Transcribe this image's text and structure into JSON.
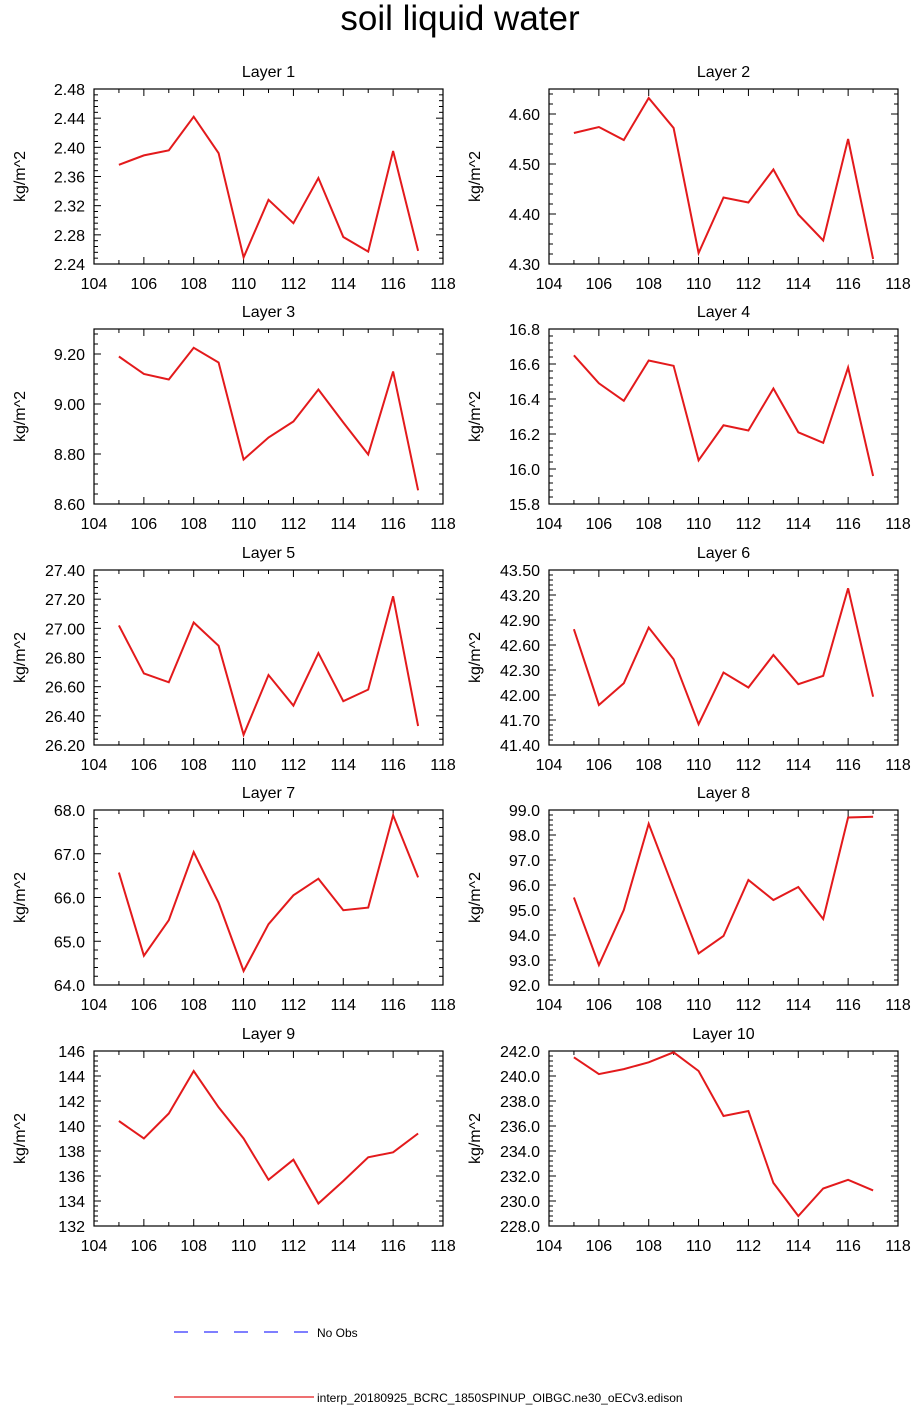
{
  "title": "soil liquid water",
  "colors": {
    "model_line": "#e31a1c",
    "obs_line": "#3333ff",
    "frame": "#000000"
  },
  "legend": {
    "obs_label": "No Obs",
    "model_label": "interp_20180925_BCRC_1850SPINUP_OIBGC.ne30_oECv3.edison"
  },
  "chart_data": [
    {
      "type": "line",
      "title": "Layer 1",
      "ylabel": "kg/m^2",
      "xlim": [
        104,
        118
      ],
      "ylim": [
        2.24,
        2.48
      ],
      "xticks": [
        "104",
        "106",
        "108",
        "110",
        "112",
        "114",
        "116",
        "118"
      ],
      "yticks": [
        "2.24",
        "2.28",
        "2.32",
        "2.36",
        "2.40",
        "2.44",
        "2.48"
      ],
      "x": [
        105,
        106,
        107,
        108,
        109,
        110,
        111,
        112,
        113,
        114,
        115,
        116,
        117
      ],
      "series": [
        {
          "values": [
            2.376,
            2.389,
            2.396,
            2.442,
            2.392,
            2.249,
            2.328,
            2.296,
            2.358,
            2.277,
            2.257,
            2.395,
            2.258
          ]
        }
      ]
    },
    {
      "type": "line",
      "title": "Layer 2",
      "ylabel": "kg/m^2",
      "xlim": [
        104,
        118
      ],
      "ylim": [
        4.3,
        4.65
      ],
      "xticks": [
        "104",
        "106",
        "108",
        "110",
        "112",
        "114",
        "116",
        "118"
      ],
      "yticks": [
        "4.30",
        "4.40",
        "4.50",
        "4.60"
      ],
      "x": [
        105,
        106,
        107,
        108,
        109,
        110,
        111,
        112,
        113,
        114,
        115,
        116,
        117
      ],
      "series": [
        {
          "values": [
            4.562,
            4.574,
            4.548,
            4.632,
            4.572,
            4.322,
            4.433,
            4.423,
            4.489,
            4.399,
            4.347,
            4.55,
            4.31
          ]
        }
      ]
    },
    {
      "type": "line",
      "title": "Layer 3",
      "ylabel": "kg/m^2",
      "xlim": [
        104,
        118
      ],
      "ylim": [
        8.6,
        9.3
      ],
      "xticks": [
        "104",
        "106",
        "108",
        "110",
        "112",
        "114",
        "116",
        "118"
      ],
      "yticks": [
        "8.60",
        "8.80",
        "9.00",
        "9.20"
      ],
      "x": [
        105,
        106,
        107,
        108,
        109,
        110,
        111,
        112,
        113,
        114,
        115,
        116,
        117
      ],
      "series": [
        {
          "values": [
            9.19,
            9.12,
            9.098,
            9.225,
            9.166,
            8.778,
            8.866,
            8.93,
            9.058,
            8.926,
            8.798,
            9.13,
            8.655
          ]
        }
      ]
    },
    {
      "type": "line",
      "title": "Layer 4",
      "ylabel": "kg/m^2",
      "xlim": [
        104,
        118
      ],
      "ylim": [
        15.8,
        16.8
      ],
      "xticks": [
        "104",
        "106",
        "108",
        "110",
        "112",
        "114",
        "116",
        "118"
      ],
      "yticks": [
        "15.8",
        "16.0",
        "16.2",
        "16.4",
        "16.6",
        "16.8"
      ],
      "x": [
        105,
        106,
        107,
        108,
        109,
        110,
        111,
        112,
        113,
        114,
        115,
        116,
        117
      ],
      "series": [
        {
          "values": [
            16.65,
            16.49,
            16.39,
            16.62,
            16.59,
            16.05,
            16.25,
            16.22,
            16.46,
            16.21,
            16.15,
            16.58,
            15.96
          ]
        }
      ]
    },
    {
      "type": "line",
      "title": "Layer 5",
      "ylabel": "kg/m^2",
      "xlim": [
        104,
        118
      ],
      "ylim": [
        26.2,
        27.4
      ],
      "xticks": [
        "104",
        "106",
        "108",
        "110",
        "112",
        "114",
        "116",
        "118"
      ],
      "yticks": [
        "26.20",
        "26.40",
        "26.60",
        "26.80",
        "27.00",
        "27.20",
        "27.40"
      ],
      "x": [
        105,
        106,
        107,
        108,
        109,
        110,
        111,
        112,
        113,
        114,
        115,
        116,
        117
      ],
      "series": [
        {
          "values": [
            27.02,
            26.69,
            26.63,
            27.04,
            26.88,
            26.27,
            26.68,
            26.47,
            26.83,
            26.5,
            26.58,
            27.22,
            26.33
          ]
        }
      ]
    },
    {
      "type": "line",
      "title": "Layer 6",
      "ylabel": "kg/m^2",
      "xlim": [
        104,
        118
      ],
      "ylim": [
        41.4,
        43.5
      ],
      "xticks": [
        "104",
        "106",
        "108",
        "110",
        "112",
        "114",
        "116",
        "118"
      ],
      "yticks": [
        "41.40",
        "41.70",
        "42.00",
        "42.30",
        "42.60",
        "42.90",
        "43.20",
        "43.50"
      ],
      "x": [
        105,
        106,
        107,
        108,
        109,
        110,
        111,
        112,
        113,
        114,
        115,
        116,
        117
      ],
      "series": [
        {
          "values": [
            42.79,
            41.88,
            42.14,
            42.81,
            42.43,
            41.65,
            42.27,
            42.09,
            42.48,
            42.13,
            42.23,
            43.28,
            41.98
          ]
        }
      ]
    },
    {
      "type": "line",
      "title": "Layer 7",
      "ylabel": "kg/m^2",
      "xlim": [
        104,
        118
      ],
      "ylim": [
        64.0,
        68.0
      ],
      "xticks": [
        "104",
        "106",
        "108",
        "110",
        "112",
        "114",
        "116",
        "118"
      ],
      "yticks": [
        "64.0",
        "65.0",
        "66.0",
        "67.0",
        "68.0"
      ],
      "x": [
        105,
        106,
        107,
        108,
        109,
        110,
        111,
        112,
        113,
        114,
        115,
        116,
        117
      ],
      "series": [
        {
          "values": [
            66.57,
            64.67,
            65.48,
            67.04,
            65.88,
            64.32,
            65.39,
            66.05,
            66.43,
            65.71,
            65.77,
            67.88,
            66.46
          ]
        }
      ]
    },
    {
      "type": "line",
      "title": "Layer 8",
      "ylabel": "kg/m^2",
      "xlim": [
        104,
        118
      ],
      "ylim": [
        92.0,
        99.0
      ],
      "xticks": [
        "104",
        "106",
        "108",
        "110",
        "112",
        "114",
        "116",
        "118"
      ],
      "yticks": [
        "92.0",
        "93.0",
        "94.0",
        "95.0",
        "96.0",
        "97.0",
        "98.0",
        "99.0"
      ],
      "x": [
        105,
        106,
        107,
        108,
        109,
        110,
        111,
        112,
        113,
        114,
        115,
        116,
        117
      ],
      "series": [
        {
          "values": [
            95.5,
            92.8,
            95.0,
            98.45,
            95.85,
            93.26,
            93.96,
            96.2,
            95.4,
            95.92,
            94.64,
            98.7,
            98.73
          ]
        }
      ]
    },
    {
      "type": "line",
      "title": "Layer 9",
      "ylabel": "kg/m^2",
      "xlim": [
        104,
        118
      ],
      "ylim": [
        132,
        146
      ],
      "xticks": [
        "104",
        "106",
        "108",
        "110",
        "112",
        "114",
        "116",
        "118"
      ],
      "yticks": [
        "132",
        "134",
        "136",
        "138",
        "140",
        "142",
        "144",
        "146"
      ],
      "x": [
        105,
        106,
        107,
        108,
        109,
        110,
        111,
        112,
        113,
        114,
        115,
        116,
        117
      ],
      "series": [
        {
          "values": [
            140.4,
            139.0,
            141.0,
            144.4,
            141.5,
            139.0,
            135.7,
            137.3,
            133.8,
            135.6,
            137.5,
            137.9,
            139.4
          ]
        }
      ]
    },
    {
      "type": "line",
      "title": "Layer 10",
      "ylabel": "kg/m^2",
      "xlim": [
        104,
        118
      ],
      "ylim": [
        228.0,
        242.0
      ],
      "xticks": [
        "104",
        "106",
        "108",
        "110",
        "112",
        "114",
        "116",
        "118"
      ],
      "yticks": [
        "228.0",
        "230.0",
        "232.0",
        "234.0",
        "236.0",
        "238.0",
        "240.0",
        "242.0"
      ],
      "x": [
        105,
        106,
        107,
        108,
        109,
        110,
        111,
        112,
        113,
        114,
        115,
        116,
        117
      ],
      "series": [
        {
          "values": [
            241.5,
            240.15,
            240.55,
            241.1,
            241.9,
            240.4,
            236.8,
            237.2,
            231.45,
            228.8,
            231.0,
            231.7,
            230.85
          ]
        }
      ]
    }
  ]
}
